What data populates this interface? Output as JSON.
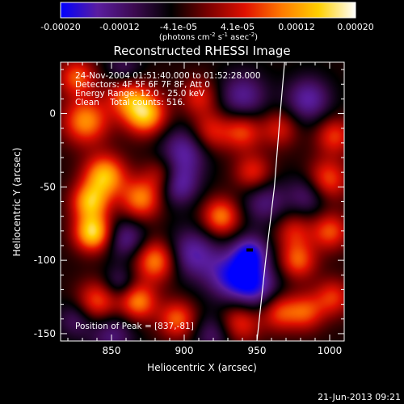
{
  "colorbar": {
    "ticks": [
      "-0.00020",
      "-0.00012",
      "-4.1e-05",
      "4.1e-05",
      "0.00012",
      "0.00020"
    ],
    "tick_values": [
      -0.0002,
      -0.00012,
      -4.1e-05,
      4.1e-05,
      0.00012,
      0.0002
    ],
    "units": {
      "p1": "(photons cm",
      "s1": "-2",
      "p2": " s",
      "s2": "-1",
      "p3": " asec",
      "s3": "-2",
      "p4": ")"
    },
    "colors": [
      "#0000ff",
      "#5a1da0",
      "#3c0a50",
      "#000000",
      "#7a0000",
      "#e01000",
      "#ff7a00",
      "#ffd000",
      "#ffffff"
    ],
    "range": [
      -0.0002,
      0.0002
    ]
  },
  "chart_data": {
    "type": "heatmap",
    "title": "Reconstructed RHESSI Image",
    "xlabel": "Heliocentric X (arcsec)",
    "ylabel": "Heliocentric Y (arcsec)",
    "xlim": [
      815,
      1010
    ],
    "ylim": [
      -155,
      35
    ],
    "xticks": [
      850,
      900,
      950,
      1000
    ],
    "yticks": [
      -150,
      -100,
      -50,
      0
    ],
    "annotations": [
      "24-Nov-2004 01:51:40.000 to 01:52:28.000",
      "Detectors: 4F 5F 6F 7F 8F, Att 0",
      "Energy Range: 12.0 - 25.0 keV",
      "Clean    Total counts: 516."
    ],
    "peak_label": "Position of Peak = [837,-81]",
    "peak": [
      837,
      -81
    ],
    "limb_curve": [
      [
        969,
        35
      ],
      [
        966,
        0
      ],
      [
        962,
        -50
      ],
      [
        956,
        -100
      ],
      [
        950,
        -155
      ]
    ],
    "blobs": [
      {
        "x": 837,
        "y": -81,
        "a": 1.0,
        "s": 9
      },
      {
        "x": 873,
        "y": 0,
        "a": 0.92,
        "s": 10
      },
      {
        "x": 860,
        "y": 12,
        "a": 0.6,
        "s": 10
      },
      {
        "x": 832,
        "y": -5,
        "a": 0.75,
        "s": 11
      },
      {
        "x": 826,
        "y": 25,
        "a": 0.6,
        "s": 9
      },
      {
        "x": 845,
        "y": -42,
        "a": 0.88,
        "s": 10
      },
      {
        "x": 835,
        "y": -60,
        "a": 0.82,
        "s": 9
      },
      {
        "x": 870,
        "y": -58,
        "a": 0.7,
        "s": 10
      },
      {
        "x": 885,
        "y": -42,
        "a": 0.45,
        "s": 9
      },
      {
        "x": 880,
        "y": -100,
        "a": 0.75,
        "s": 10
      },
      {
        "x": 868,
        "y": -128,
        "a": 0.72,
        "s": 9
      },
      {
        "x": 895,
        "y": -140,
        "a": 0.62,
        "s": 9
      },
      {
        "x": 840,
        "y": -128,
        "a": 0.6,
        "s": 10
      },
      {
        "x": 925,
        "y": -70,
        "a": 0.7,
        "s": 9
      },
      {
        "x": 918,
        "y": -12,
        "a": 0.5,
        "s": 10
      },
      {
        "x": 910,
        "y": 12,
        "a": 0.45,
        "s": 9
      },
      {
        "x": 947,
        "y": -40,
        "a": 0.5,
        "s": 9
      },
      {
        "x": 940,
        "y": -12,
        "a": 0.55,
        "s": 9
      },
      {
        "x": 965,
        "y": -10,
        "a": 0.42,
        "s": 9
      },
      {
        "x": 938,
        "y": -142,
        "a": 0.55,
        "s": 10
      },
      {
        "x": 965,
        "y": -135,
        "a": 0.55,
        "s": 9
      },
      {
        "x": 978,
        "y": -100,
        "a": 0.6,
        "s": 9
      },
      {
        "x": 975,
        "y": -80,
        "a": 0.42,
        "s": 9
      },
      {
        "x": 983,
        "y": -135,
        "a": 0.55,
        "s": 9
      },
      {
        "x": 998,
        "y": -45,
        "a": 0.62,
        "s": 10
      },
      {
        "x": 1003,
        "y": -15,
        "a": 0.52,
        "s": 9
      },
      {
        "x": 1000,
        "y": -80,
        "a": 0.58,
        "s": 9
      },
      {
        "x": 1002,
        "y": -125,
        "a": 0.5,
        "s": 9
      },
      {
        "x": 900,
        "y": -25,
        "a": -0.55,
        "s": 12
      },
      {
        "x": 895,
        "y": -48,
        "a": -0.6,
        "s": 10
      },
      {
        "x": 905,
        "y": -95,
        "a": -0.55,
        "s": 12
      },
      {
        "x": 930,
        "y": -110,
        "a": -0.55,
        "s": 12
      },
      {
        "x": 948,
        "y": -118,
        "a": -0.65,
        "s": 12
      },
      {
        "x": 945,
        "y": -95,
        "a": -0.65,
        "s": 9
      },
      {
        "x": 940,
        "y": 12,
        "a": -0.5,
        "s": 12
      },
      {
        "x": 955,
        "y": -60,
        "a": -0.42,
        "s": 11
      },
      {
        "x": 985,
        "y": 10,
        "a": -0.55,
        "s": 11
      },
      {
        "x": 985,
        "y": -55,
        "a": -0.42,
        "s": 10
      },
      {
        "x": 860,
        "y": -85,
        "a": -0.48,
        "s": 10
      },
      {
        "x": 855,
        "y": -115,
        "a": -0.35,
        "s": 8
      },
      {
        "x": 850,
        "y": -150,
        "a": -0.42,
        "s": 11
      },
      {
        "x": 920,
        "y": -150,
        "a": -0.38,
        "s": 10
      },
      {
        "x": 858,
        "y": 30,
        "a": -0.35,
        "s": 9
      },
      {
        "x": 825,
        "y": -140,
        "a": -0.35,
        "s": 9
      }
    ],
    "background_level": -0.2
  },
  "footer": {
    "timestamp": "21-Jun-2013 09:21"
  }
}
